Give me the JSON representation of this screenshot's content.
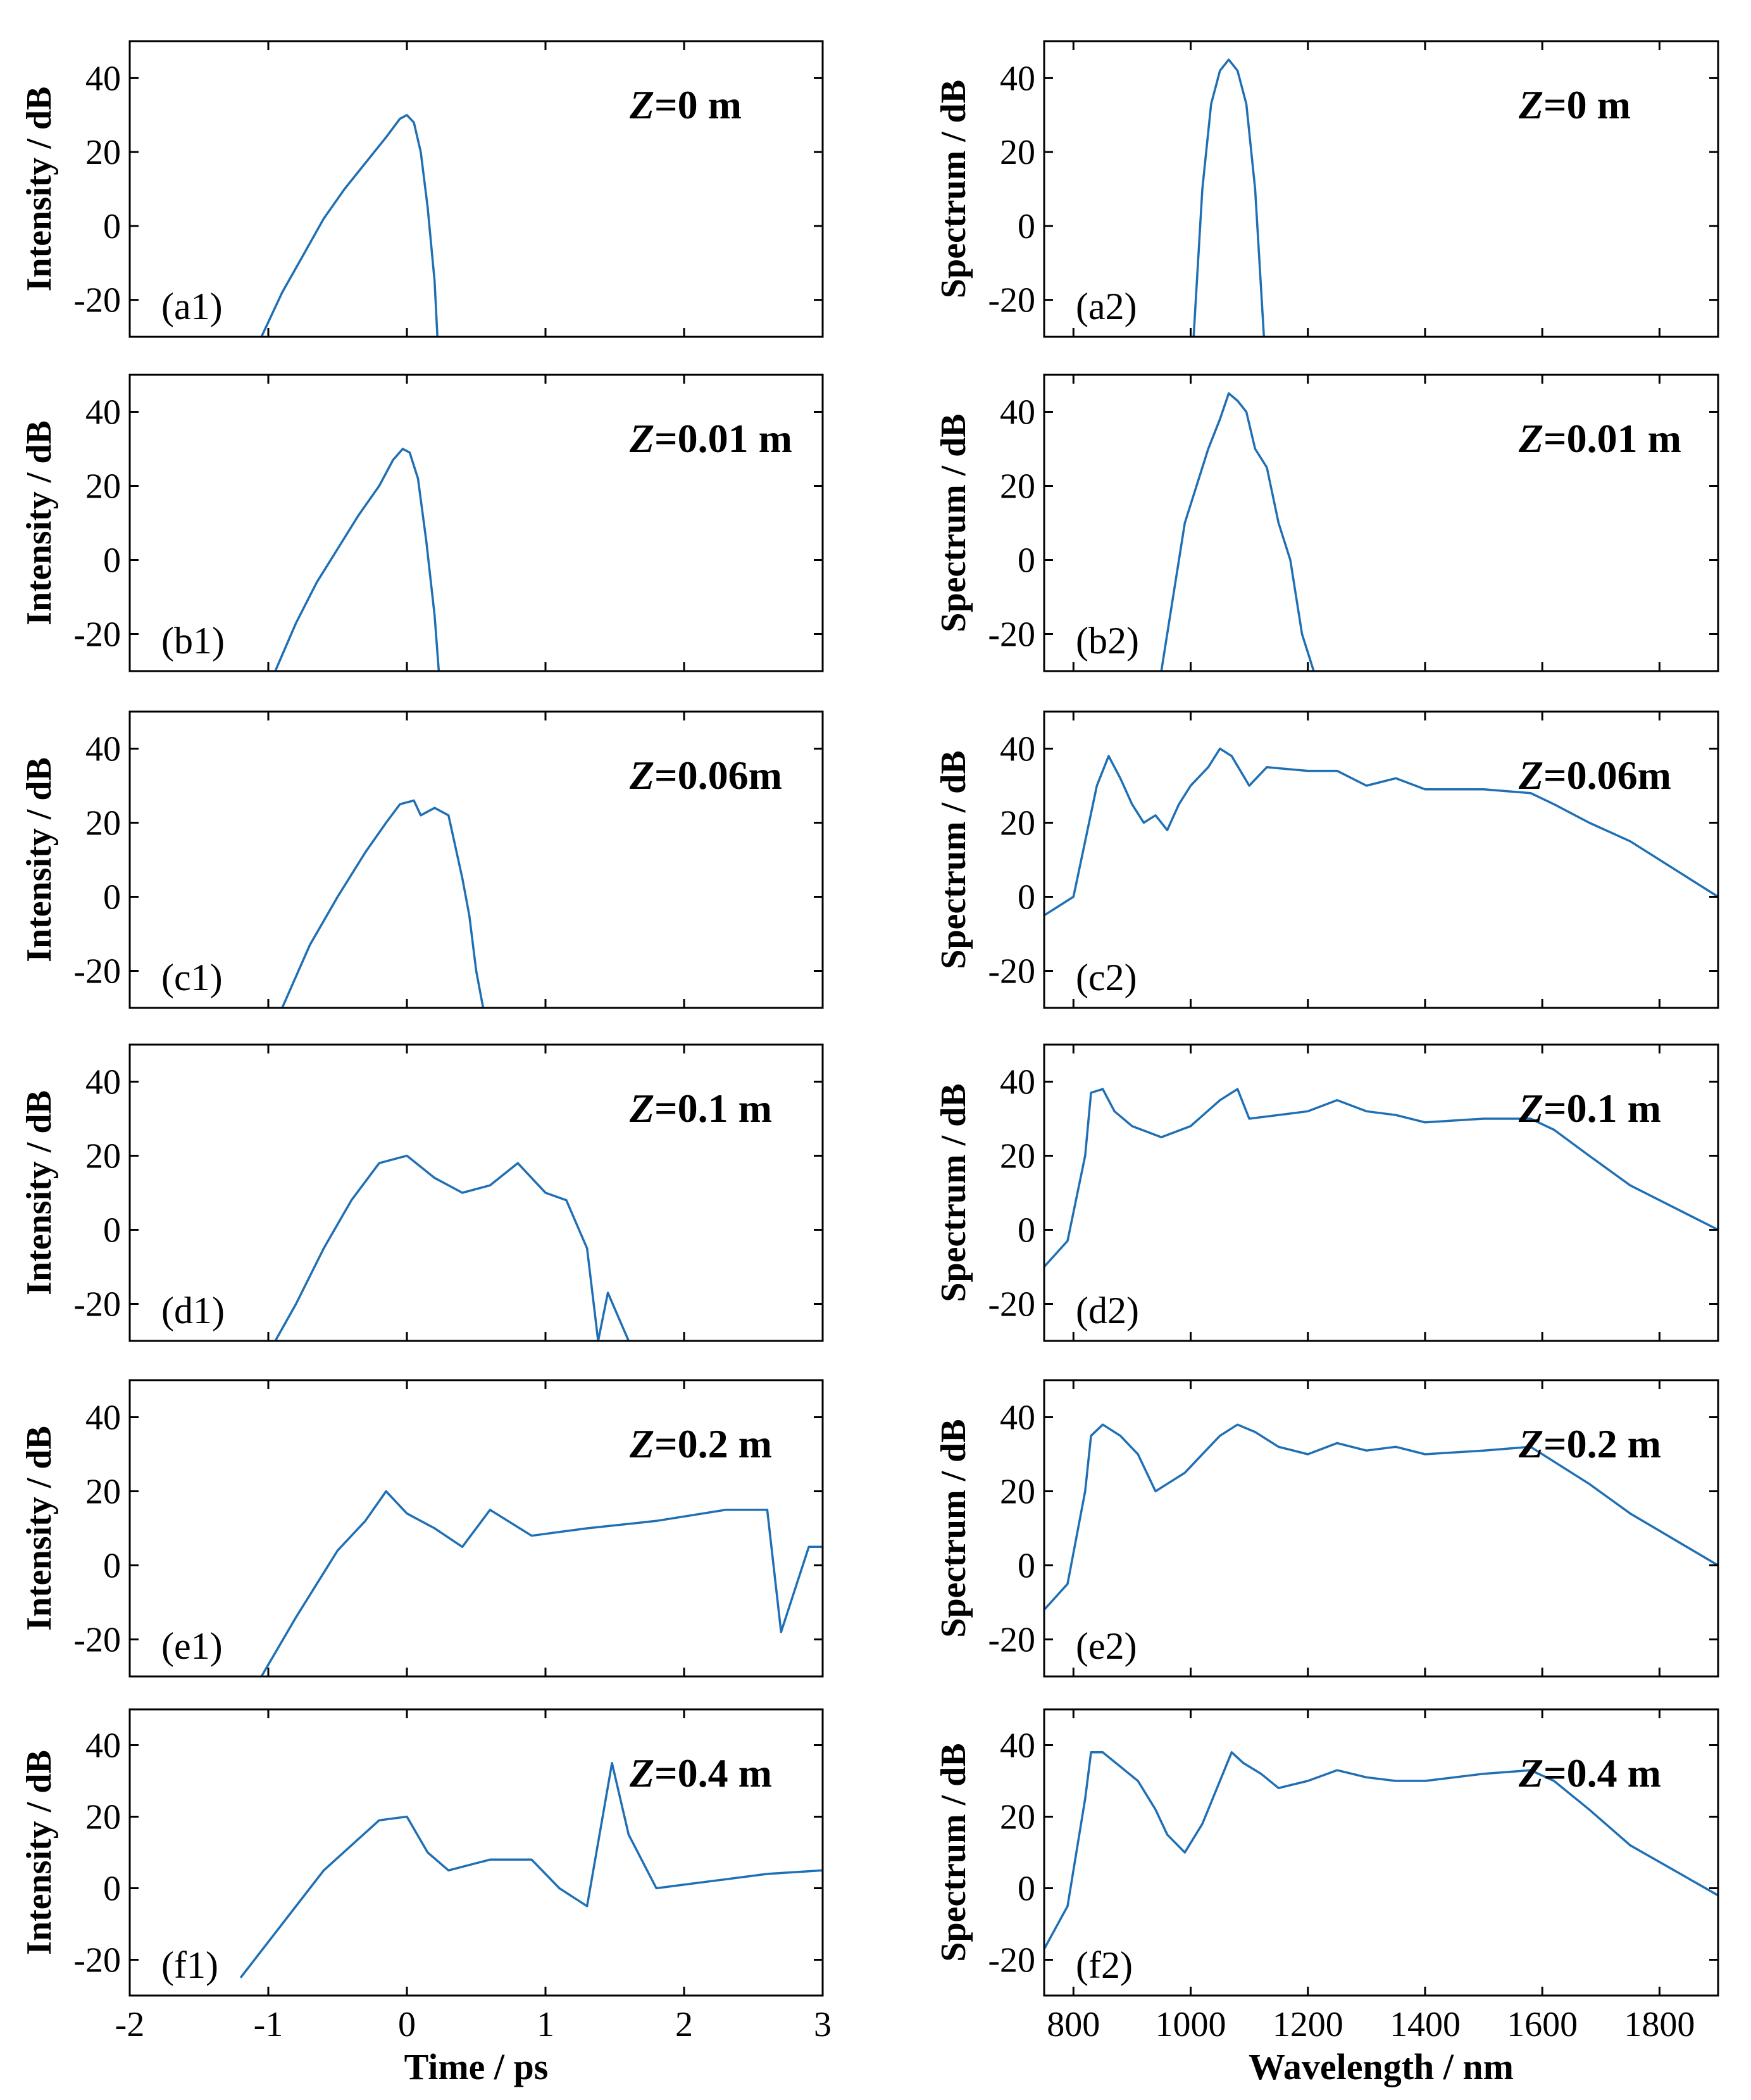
{
  "figure": {
    "left_column": {
      "ylabel": "Intensity / dB",
      "xlabel": "Time / ps",
      "xlim": [
        -2,
        3
      ],
      "ylim": [
        -30,
        50
      ],
      "xticks": [
        "-2",
        "-1",
        "0",
        "1",
        "2",
        "3"
      ],
      "yticks": [
        "-20",
        "0",
        "20",
        "40"
      ]
    },
    "right_column": {
      "ylabel": "Spectrum / dB",
      "xlabel": "Wavelength / nm",
      "xlim": [
        750,
        1900
      ],
      "ylim": [
        -30,
        50
      ],
      "xticks": [
        "800",
        "1000",
        "1200",
        "1400",
        "1600",
        "1800"
      ],
      "yticks": [
        "-20",
        "0",
        "20",
        "40"
      ]
    },
    "line_color": "#1f6fb4"
  },
  "chart_data": [
    {
      "type": "line",
      "panel": "(a1)",
      "z_prefix": "Z",
      "z_value": "=0 m",
      "xlabel": "Time / ps",
      "ylabel": "Intensity / dB",
      "x": [
        -1.05,
        -0.9,
        -0.75,
        -0.6,
        -0.45,
        -0.3,
        -0.15,
        -0.05,
        0.0,
        0.05,
        0.1,
        0.15,
        0.2,
        0.22
      ],
      "y": [
        -30,
        -18,
        -8,
        2,
        10,
        17,
        24,
        29,
        30,
        28,
        20,
        5,
        -15,
        -30
      ]
    },
    {
      "type": "line",
      "panel": "(b1)",
      "z_prefix": "Z",
      "z_value": "=0.01 m",
      "xlabel": "Time / ps",
      "ylabel": "Intensity / dB",
      "x": [
        -0.95,
        -0.8,
        -0.65,
        -0.5,
        -0.35,
        -0.2,
        -0.1,
        -0.03,
        0.02,
        0.08,
        0.14,
        0.2,
        0.23
      ],
      "y": [
        -30,
        -17,
        -6,
        3,
        12,
        20,
        27,
        30,
        29,
        22,
        5,
        -15,
        -30
      ]
    },
    {
      "type": "line",
      "panel": "(c1)",
      "z_prefix": "Z",
      "z_value": "=0.06m",
      "xlabel": "Time / ps",
      "ylabel": "Intensity / dB",
      "x": [
        -0.9,
        -0.7,
        -0.5,
        -0.3,
        -0.15,
        -0.05,
        0.05,
        0.1,
        0.2,
        0.3,
        0.4,
        0.45,
        0.5,
        0.55
      ],
      "y": [
        -30,
        -13,
        0,
        12,
        20,
        25,
        26,
        22,
        24,
        22,
        5,
        -5,
        -20,
        -30
      ]
    },
    {
      "type": "line",
      "panel": "(d1)",
      "z_prefix": "Z",
      "z_value": "=0.1 m",
      "xlabel": "Time / ps",
      "ylabel": "Intensity / dB",
      "x": [
        -0.95,
        -0.8,
        -0.6,
        -0.4,
        -0.2,
        0.0,
        0.2,
        0.4,
        0.6,
        0.8,
        1.0,
        1.15,
        1.3,
        1.38,
        1.45,
        1.6
      ],
      "y": [
        -30,
        -20,
        -5,
        8,
        18,
        20,
        14,
        10,
        12,
        18,
        10,
        8,
        -5,
        -30,
        -17,
        -30
      ]
    },
    {
      "type": "line",
      "panel": "(e1)",
      "z_prefix": "Z",
      "z_value": "=0.2 m",
      "xlabel": "Time / ps",
      "ylabel": "Intensity / dB",
      "x": [
        -1.05,
        -0.8,
        -0.5,
        -0.3,
        -0.15,
        0.0,
        0.2,
        0.4,
        0.6,
        0.9,
        1.3,
        1.8,
        2.3,
        2.6,
        2.7,
        2.9,
        3.0
      ],
      "y": [
        -30,
        -14,
        4,
        12,
        20,
        14,
        10,
        5,
        15,
        8,
        10,
        12,
        15,
        15,
        -18,
        5,
        5
      ]
    },
    {
      "type": "line",
      "panel": "(f1)",
      "z_prefix": "Z",
      "z_value": "=0.4 m",
      "xlabel": "Time / ps",
      "ylabel": "Intensity / dB",
      "x": [
        -1.2,
        -0.9,
        -0.6,
        -0.4,
        -0.2,
        0.0,
        0.15,
        0.3,
        0.6,
        0.9,
        1.1,
        1.3,
        1.48,
        1.6,
        1.8,
        2.2,
        2.6,
        3.0
      ],
      "y": [
        -25,
        -10,
        5,
        12,
        19,
        20,
        10,
        5,
        8,
        8,
        0,
        -5,
        35,
        15,
        0,
        2,
        4,
        5
      ]
    },
    {
      "type": "line",
      "panel": "(a2)",
      "z_prefix": "Z",
      "z_value": "=0 m",
      "xlabel": "Wavelength / nm",
      "ylabel": "Spectrum / dB",
      "x": [
        1005,
        1020,
        1035,
        1050,
        1065,
        1080,
        1095,
        1110,
        1125
      ],
      "y": [
        -30,
        10,
        33,
        42,
        45,
        42,
        33,
        10,
        -30
      ]
    },
    {
      "type": "line",
      "panel": "(b2)",
      "z_prefix": "Z",
      "z_value": "=0.01 m",
      "xlabel": "Wavelength / nm",
      "ylabel": "Spectrum / dB",
      "x": [
        950,
        970,
        990,
        1010,
        1030,
        1050,
        1065,
        1080,
        1095,
        1110,
        1130,
        1150,
        1170,
        1190,
        1210
      ],
      "y": [
        -30,
        -10,
        10,
        20,
        30,
        38,
        45,
        43,
        40,
        30,
        25,
        10,
        0,
        -20,
        -30
      ]
    },
    {
      "type": "line",
      "panel": "(c2)",
      "z_prefix": "Z",
      "z_value": "=0.06m",
      "xlabel": "Wavelength / nm",
      "ylabel": "Spectrum / dB",
      "x": [
        750,
        800,
        820,
        840,
        860,
        880,
        900,
        920,
        940,
        960,
        980,
        1000,
        1030,
        1050,
        1070,
        1100,
        1130,
        1200,
        1250,
        1300,
        1350,
        1400,
        1500,
        1580,
        1620,
        1680,
        1750,
        1900
      ],
      "y": [
        -5,
        0,
        15,
        30,
        38,
        32,
        25,
        20,
        22,
        18,
        25,
        30,
        35,
        40,
        38,
        30,
        35,
        34,
        34,
        30,
        32,
        29,
        29,
        28,
        25,
        20,
        15,
        0
      ]
    },
    {
      "type": "line",
      "panel": "(d2)",
      "z_prefix": "Z",
      "z_value": "=0.1 m",
      "xlabel": "Wavelength / nm",
      "ylabel": "Spectrum / dB",
      "x": [
        750,
        790,
        820,
        830,
        850,
        870,
        900,
        950,
        1000,
        1050,
        1080,
        1100,
        1150,
        1200,
        1250,
        1300,
        1350,
        1400,
        1500,
        1580,
        1620,
        1680,
        1750,
        1900
      ],
      "y": [
        -10,
        -3,
        20,
        37,
        38,
        32,
        28,
        25,
        28,
        35,
        38,
        30,
        31,
        32,
        35,
        32,
        31,
        29,
        30,
        30,
        27,
        20,
        12,
        0
      ]
    },
    {
      "type": "line",
      "panel": "(e2)",
      "z_prefix": "Z",
      "z_value": "=0.2 m",
      "xlabel": "Wavelength / nm",
      "ylabel": "Spectrum / dB",
      "x": [
        750,
        790,
        820,
        830,
        850,
        880,
        910,
        940,
        960,
        990,
        1020,
        1050,
        1080,
        1110,
        1150,
        1200,
        1250,
        1300,
        1350,
        1400,
        1500,
        1580,
        1620,
        1680,
        1750,
        1900
      ],
      "y": [
        -12,
        -5,
        20,
        35,
        38,
        35,
        30,
        20,
        22,
        25,
        30,
        35,
        38,
        36,
        32,
        30,
        33,
        31,
        32,
        30,
        31,
        32,
        28,
        22,
        14,
        0
      ]
    },
    {
      "type": "line",
      "panel": "(f2)",
      "z_prefix": "Z",
      "z_value": "=0.4 m",
      "xlabel": "Wavelength / nm",
      "ylabel": "Spectrum / dB",
      "x": [
        750,
        790,
        820,
        830,
        850,
        880,
        910,
        940,
        960,
        990,
        1020,
        1050,
        1070,
        1090,
        1120,
        1150,
        1200,
        1250,
        1300,
        1350,
        1400,
        1500,
        1580,
        1620,
        1680,
        1750,
        1900
      ],
      "y": [
        -17,
        -5,
        25,
        38,
        38,
        34,
        30,
        22,
        15,
        10,
        18,
        30,
        38,
        35,
        32,
        28,
        30,
        33,
        31,
        30,
        30,
        32,
        33,
        30,
        22,
        12,
        -2
      ]
    }
  ]
}
